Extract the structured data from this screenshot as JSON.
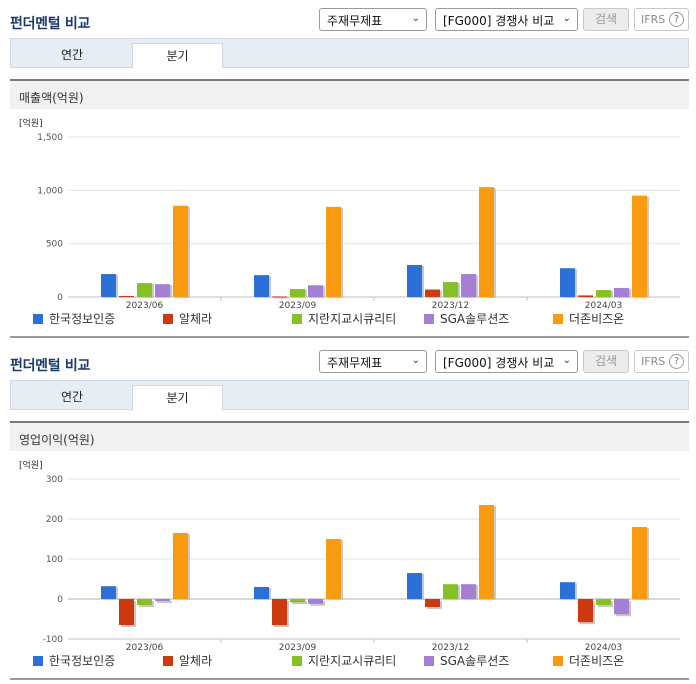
{
  "colors": {
    "series": [
      "#2b6fd8",
      "#cc3a0d",
      "#86bf26",
      "#a57fd4",
      "#f99a10"
    ],
    "title": "#1a3a6e",
    "grid": "#e3e3e3"
  },
  "panels": [
    {
      "title": "펀더멘털 비교",
      "select1": "주재무제표",
      "select2": "[FG000] 경쟁사 비교",
      "search_label": "검색",
      "ifrs_label": "IFRS",
      "help_label": "?",
      "tabs": [
        {
          "label": "연간"
        },
        {
          "label": "분기"
        }
      ],
      "chart_title": "매출액(억원)"
    },
    {
      "title": "펀더멘털 비교",
      "select1": "주재무제표",
      "select2": "[FG000] 경쟁사 비교",
      "search_label": "검색",
      "ifrs_label": "IFRS",
      "help_label": "?",
      "tabs": [
        {
          "label": "연간"
        },
        {
          "label": "분기"
        }
      ],
      "chart_title": "영업이익(억원)"
    }
  ],
  "chart_data": [
    {
      "type": "bar",
      "title": "매출액(억원)",
      "unit_label": "[억원]",
      "categories": [
        "2023/06",
        "2023/09",
        "2023/12",
        "2024/03"
      ],
      "ylim": [
        0,
        1500
      ],
      "yticks": [
        0,
        500,
        1000,
        1500
      ],
      "ytick_labels": [
        "0",
        "500",
        "1,000",
        "1,500"
      ],
      "grid": true,
      "legend": "bottom",
      "series": [
        {
          "name": "한국정보인증",
          "values": [
            215,
            205,
            300,
            270
          ]
        },
        {
          "name": "알체라",
          "values": [
            10,
            5,
            70,
            15
          ]
        },
        {
          "name": "지란지교시큐리티",
          "values": [
            130,
            75,
            140,
            65
          ]
        },
        {
          "name": "SGA솔루션즈",
          "values": [
            120,
            110,
            215,
            85
          ]
        },
        {
          "name": "더존비즈온",
          "values": [
            855,
            845,
            1030,
            950
          ]
        }
      ]
    },
    {
      "type": "bar",
      "title": "영업이익(억원)",
      "unit_label": "[억원]",
      "categories": [
        "2023/06",
        "2023/09",
        "2023/12",
        "2024/03"
      ],
      "ylim": [
        -100,
        300
      ],
      "yticks": [
        -100,
        0,
        100,
        200,
        300
      ],
      "ytick_labels": [
        "-100",
        "0",
        "100",
        "200",
        "300"
      ],
      "grid": true,
      "legend": "bottom",
      "series": [
        {
          "name": "한국정보인증",
          "values": [
            32,
            30,
            65,
            42
          ]
        },
        {
          "name": "알체라",
          "values": [
            -65,
            -65,
            -20,
            -58
          ]
        },
        {
          "name": "지란지교시큐리티",
          "values": [
            -15,
            -8,
            37,
            -15
          ]
        },
        {
          "name": "SGA솔루션즈",
          "values": [
            -5,
            -12,
            37,
            -38
          ]
        },
        {
          "name": "더존비즈온",
          "values": [
            165,
            150,
            235,
            180
          ]
        }
      ]
    }
  ]
}
